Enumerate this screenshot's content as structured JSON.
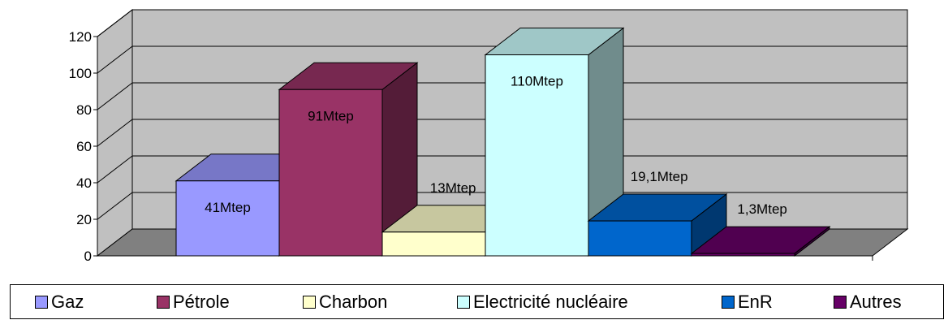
{
  "chart_data": {
    "type": "bar",
    "categories": [
      "Gaz",
      "Pétrole",
      "Charbon",
      "Electricité nucléaire",
      "EnR",
      "Autres"
    ],
    "values": [
      41,
      91,
      13,
      110,
      19.1,
      1.3
    ],
    "data_labels": [
      "41Mtep",
      "91Mtep",
      "13Mtep",
      "110Mtep",
      "19,1Mtep",
      "1,3Mtep"
    ],
    "colors": [
      "#9999ff",
      "#993366",
      "#ffffcc",
      "#ccffff",
      "#0066cc",
      "#660066"
    ],
    "ylim": [
      0,
      120
    ],
    "yticks": [
      "0",
      "20",
      "40",
      "60",
      "80",
      "100",
      "120"
    ],
    "grid": true,
    "three_d": true,
    "legend_position": "bottom",
    "title": "",
    "xlabel": "",
    "ylabel": ""
  }
}
